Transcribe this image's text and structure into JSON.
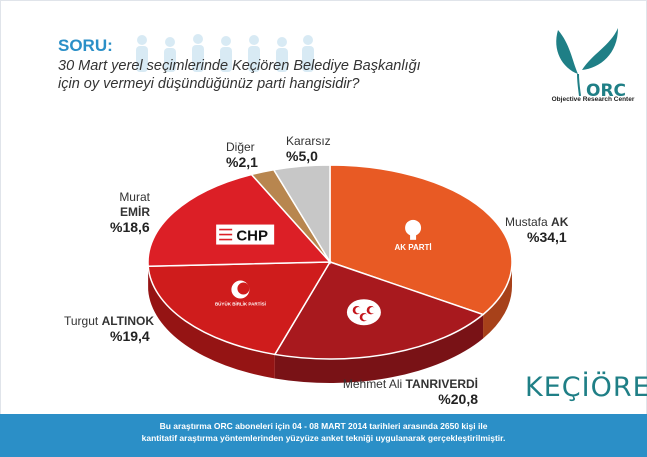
{
  "header": {
    "soru_label": "SORU:",
    "question_line1": "30 Mart yerel seçimlerinde Keçiören Belediye Başkanlığı",
    "question_line2": "için oy vermeyi düşündüğünüz parti hangisidir?"
  },
  "logo": {
    "text": "ORC",
    "caption": "Objective Research Center",
    "color": "#1f7f86"
  },
  "district": "KEÇİÖREN",
  "footer": {
    "line1": "Bu araştırma ORC aboneleri için 04 - 08 MART 2014 tarihleri arasında  2650 kişi ile",
    "line2": "kantitatif araştırma yöntemlerinden yüzyüze anket tekniği  uygulanarak gerçekleştirilmiştir."
  },
  "chart_data": {
    "type": "pie",
    "style": "3d",
    "slices": [
      {
        "first": "Mustafa",
        "last": "AK",
        "value": 34.1,
        "value_label": "%34,1",
        "party": "AK PARTİ",
        "color": "#e85a24"
      },
      {
        "first": "Mehmet Ali",
        "last": "TANRIVERDİ",
        "value": 20.8,
        "value_label": "%20,8",
        "party": "MHP",
        "color": "#a8191e"
      },
      {
        "first": "Turgut",
        "last": "ALTINOK",
        "value": 19.4,
        "value_label": "%19,4",
        "party": "BÜYÜK BİRLİK PARTİSİ",
        "color": "#cf1c1c"
      },
      {
        "first": "Murat",
        "last": "EMİR",
        "value": 18.6,
        "value_label": "%18,6",
        "party": "CHP",
        "color": "#dc1f26"
      },
      {
        "first": "Diğer",
        "last": "",
        "value": 2.1,
        "value_label": "%2,1",
        "party": "",
        "color": "#b8864f"
      },
      {
        "first": "Kararsız",
        "last": "",
        "value": 5.0,
        "value_label": "%5,0",
        "party": "",
        "color": "#c7c7c7"
      }
    ]
  }
}
